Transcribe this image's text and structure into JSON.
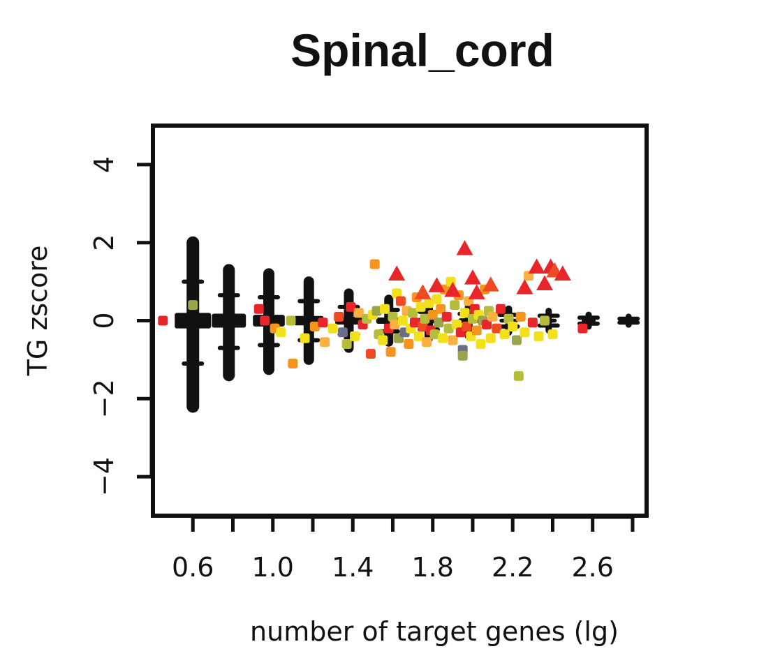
{
  "chart_data": {
    "type": "scatter",
    "title": "Spinal_cord",
    "xlabel": "number of target genes (lg)",
    "ylabel": "TG zscore",
    "xlim": [
      0.4,
      2.87
    ],
    "ylim": [
      -5,
      5
    ],
    "x_ticks": [
      0.6,
      0.8,
      1.0,
      1.2,
      1.4,
      1.6,
      1.8,
      2.0,
      2.2,
      2.4,
      2.6,
      2.8
    ],
    "x_tick_labels": [
      "0.6",
      "",
      "1.0",
      "",
      "1.4",
      "",
      "1.8",
      "",
      "2.2",
      "",
      "2.6",
      ""
    ],
    "y_ticks": [
      -4,
      -2,
      0,
      2,
      4
    ],
    "y_tick_labels": [
      "−4",
      "−2",
      "0",
      "2",
      "4"
    ],
    "grid": false,
    "legend": "none",
    "colors": {
      "black": "#111111",
      "red": "#e8262a",
      "orange_red": "#f04a23",
      "orange": "#f7941d",
      "amber": "#fbb040",
      "yellow": "#f2e11a",
      "olive": "#b5bd3a",
      "khaki": "#9aa44a",
      "slate": "#6d6d85",
      "navy": "#2e3a87"
    },
    "null_distribution": [
      {
        "x": 0.6,
        "y_min": -2.2,
        "y_max": 2.0,
        "box_half_height": 0.2
      },
      {
        "x": 0.78,
        "y_min": -1.4,
        "y_max": 1.3,
        "box_half_height": 0.18
      },
      {
        "x": 0.98,
        "y_min": -1.25,
        "y_max": 1.2,
        "box_half_height": 0.15
      },
      {
        "x": 1.18,
        "y_min": -1.0,
        "y_max": 1.0,
        "box_half_height": 0.12
      },
      {
        "x": 1.38,
        "y_min": -0.7,
        "y_max": 0.7,
        "box_half_height": 0.1
      },
      {
        "x": 1.58,
        "y_min": -0.55,
        "y_max": 0.55,
        "box_half_height": 0.08
      },
      {
        "x": 1.78,
        "y_min": -0.45,
        "y_max": 0.45,
        "box_half_height": 0.07
      },
      {
        "x": 1.98,
        "y_min": -0.4,
        "y_max": 0.35,
        "box_half_height": 0.06
      },
      {
        "x": 2.18,
        "y_min": -0.3,
        "y_max": 0.3,
        "box_half_height": 0.05
      },
      {
        "x": 2.38,
        "y_min": -0.25,
        "y_max": 0.25,
        "box_half_height": 0.05
      },
      {
        "x": 2.58,
        "y_min": -0.15,
        "y_max": 0.15,
        "box_half_height": 0.05
      },
      {
        "x": 2.78,
        "y_min": -0.1,
        "y_max": 0.1,
        "box_half_height": 0.05
      }
    ],
    "points": [
      {
        "x": 0.45,
        "y": 0.0,
        "color": "red",
        "shape": "square"
      },
      {
        "x": 0.6,
        "y": 0.4,
        "color": "khaki",
        "shape": "square"
      },
      {
        "x": 0.93,
        "y": 0.3,
        "color": "red",
        "shape": "square"
      },
      {
        "x": 0.96,
        "y": 0.0,
        "color": "red",
        "shape": "square"
      },
      {
        "x": 1.01,
        "y": -0.2,
        "color": "orange",
        "shape": "square"
      },
      {
        "x": 1.04,
        "y": -0.3,
        "color": "yellow",
        "shape": "square"
      },
      {
        "x": 1.09,
        "y": 0.0,
        "color": "olive",
        "shape": "square"
      },
      {
        "x": 1.1,
        "y": -1.1,
        "color": "orange",
        "shape": "square"
      },
      {
        "x": 1.16,
        "y": -0.45,
        "color": "yellow",
        "shape": "square"
      },
      {
        "x": 1.21,
        "y": -0.15,
        "color": "orange",
        "shape": "square"
      },
      {
        "x": 1.25,
        "y": -0.05,
        "color": "red",
        "shape": "square"
      },
      {
        "x": 1.26,
        "y": -0.55,
        "color": "amber",
        "shape": "square"
      },
      {
        "x": 1.3,
        "y": -0.2,
        "color": "yellow",
        "shape": "square"
      },
      {
        "x": 1.33,
        "y": 0.1,
        "color": "orange_red",
        "shape": "square"
      },
      {
        "x": 1.35,
        "y": -0.3,
        "color": "slate",
        "shape": "square"
      },
      {
        "x": 1.37,
        "y": -0.6,
        "color": "olive",
        "shape": "square"
      },
      {
        "x": 1.39,
        "y": 0.35,
        "color": "red",
        "shape": "square"
      },
      {
        "x": 1.41,
        "y": -0.4,
        "color": "yellow",
        "shape": "square"
      },
      {
        "x": 1.43,
        "y": 0.2,
        "color": "amber",
        "shape": "square"
      },
      {
        "x": 1.45,
        "y": -0.1,
        "color": "red",
        "shape": "square"
      },
      {
        "x": 1.47,
        "y": 0.05,
        "color": "olive",
        "shape": "square"
      },
      {
        "x": 1.49,
        "y": -0.85,
        "color": "orange_red",
        "shape": "square"
      },
      {
        "x": 1.5,
        "y": 0.15,
        "color": "yellow",
        "shape": "square"
      },
      {
        "x": 1.51,
        "y": 1.45,
        "color": "orange",
        "shape": "square"
      },
      {
        "x": 1.52,
        "y": 0.25,
        "color": "khaki",
        "shape": "square"
      },
      {
        "x": 1.53,
        "y": -0.35,
        "color": "olive",
        "shape": "square"
      },
      {
        "x": 1.55,
        "y": -0.5,
        "color": "yellow",
        "shape": "square"
      },
      {
        "x": 1.56,
        "y": 0.3,
        "color": "yellow",
        "shape": "square"
      },
      {
        "x": 1.58,
        "y": -0.2,
        "color": "red",
        "shape": "square"
      },
      {
        "x": 1.59,
        "y": -0.8,
        "color": "orange",
        "shape": "square"
      },
      {
        "x": 1.6,
        "y": 0.1,
        "color": "olive",
        "shape": "square"
      },
      {
        "x": 1.61,
        "y": -0.1,
        "color": "amber",
        "shape": "square"
      },
      {
        "x": 1.62,
        "y": 0.7,
        "color": "yellow",
        "shape": "square"
      },
      {
        "x": 1.63,
        "y": -0.45,
        "color": "khaki",
        "shape": "square"
      },
      {
        "x": 1.64,
        "y": 0.5,
        "color": "orange_red",
        "shape": "square"
      },
      {
        "x": 1.65,
        "y": 0.0,
        "color": "yellow",
        "shape": "square"
      },
      {
        "x": 1.66,
        "y": -0.3,
        "color": "slate",
        "shape": "square"
      },
      {
        "x": 1.67,
        "y": 0.25,
        "color": "amber",
        "shape": "square"
      },
      {
        "x": 1.68,
        "y": -0.6,
        "color": "orange",
        "shape": "square"
      },
      {
        "x": 1.69,
        "y": -0.2,
        "color": "yellow",
        "shape": "square"
      },
      {
        "x": 1.7,
        "y": 0.2,
        "color": "olive",
        "shape": "square"
      },
      {
        "x": 1.71,
        "y": -0.05,
        "color": "red",
        "shape": "square"
      },
      {
        "x": 1.72,
        "y": 0.6,
        "color": "orange",
        "shape": "square"
      },
      {
        "x": 1.73,
        "y": -0.4,
        "color": "yellow",
        "shape": "square"
      },
      {
        "x": 1.74,
        "y": 0.35,
        "color": "yellow",
        "shape": "square"
      },
      {
        "x": 1.75,
        "y": -0.15,
        "color": "orange_red",
        "shape": "square"
      },
      {
        "x": 1.76,
        "y": 0.05,
        "color": "olive",
        "shape": "square"
      },
      {
        "x": 1.77,
        "y": -0.55,
        "color": "amber",
        "shape": "square"
      },
      {
        "x": 1.78,
        "y": 0.45,
        "color": "yellow",
        "shape": "square"
      },
      {
        "x": 1.79,
        "y": -0.25,
        "color": "red",
        "shape": "square"
      },
      {
        "x": 1.8,
        "y": 0.15,
        "color": "orange",
        "shape": "square"
      },
      {
        "x": 1.81,
        "y": -0.35,
        "color": "olive",
        "shape": "square"
      },
      {
        "x": 1.82,
        "y": 0.55,
        "color": "yellow",
        "shape": "square"
      },
      {
        "x": 1.83,
        "y": -0.05,
        "color": "khaki",
        "shape": "square"
      },
      {
        "x": 1.84,
        "y": 0.3,
        "color": "orange",
        "shape": "square"
      },
      {
        "x": 1.85,
        "y": -0.45,
        "color": "yellow",
        "shape": "square"
      },
      {
        "x": 1.86,
        "y": 0.8,
        "color": "orange",
        "shape": "square"
      },
      {
        "x": 1.87,
        "y": 0.1,
        "color": "red",
        "shape": "square"
      },
      {
        "x": 1.88,
        "y": -0.2,
        "color": "olive",
        "shape": "square"
      },
      {
        "x": 1.89,
        "y": 1.0,
        "color": "yellow",
        "shape": "square"
      },
      {
        "x": 1.9,
        "y": -0.5,
        "color": "amber",
        "shape": "square"
      },
      {
        "x": 1.91,
        "y": 0.4,
        "color": "olive",
        "shape": "square"
      },
      {
        "x": 1.92,
        "y": -0.1,
        "color": "yellow",
        "shape": "square"
      },
      {
        "x": 1.93,
        "y": 0.65,
        "color": "orange",
        "shape": "square"
      },
      {
        "x": 1.94,
        "y": -0.3,
        "color": "red",
        "shape": "square"
      },
      {
        "x": 1.95,
        "y": -0.75,
        "color": "slate",
        "shape": "square"
      },
      {
        "x": 1.95,
        "y": -0.9,
        "color": "khaki",
        "shape": "square"
      },
      {
        "x": 1.96,
        "y": 0.2,
        "color": "yellow",
        "shape": "square"
      },
      {
        "x": 1.97,
        "y": -0.15,
        "color": "orange_red",
        "shape": "square"
      },
      {
        "x": 1.98,
        "y": 0.5,
        "color": "amber",
        "shape": "square"
      },
      {
        "x": 1.99,
        "y": -0.4,
        "color": "yellow",
        "shape": "square"
      },
      {
        "x": 2.0,
        "y": 0.05,
        "color": "olive",
        "shape": "square"
      },
      {
        "x": 2.01,
        "y": 0.3,
        "color": "red",
        "shape": "square"
      },
      {
        "x": 2.02,
        "y": -0.25,
        "color": "orange",
        "shape": "square"
      },
      {
        "x": 2.03,
        "y": 0.15,
        "color": "yellow",
        "shape": "square"
      },
      {
        "x": 2.04,
        "y": -0.6,
        "color": "yellow",
        "shape": "square"
      },
      {
        "x": 2.05,
        "y": 0.0,
        "color": "khaki",
        "shape": "square"
      },
      {
        "x": 2.06,
        "y": 0.8,
        "color": "orange",
        "shape": "square"
      },
      {
        "x": 2.07,
        "y": -0.1,
        "color": "red",
        "shape": "square"
      },
      {
        "x": 2.08,
        "y": 0.25,
        "color": "olive",
        "shape": "square"
      },
      {
        "x": 2.09,
        "y": -0.45,
        "color": "yellow",
        "shape": "square"
      },
      {
        "x": 2.1,
        "y": 0.1,
        "color": "amber",
        "shape": "square"
      },
      {
        "x": 2.12,
        "y": -0.2,
        "color": "orange_red",
        "shape": "square"
      },
      {
        "x": 2.14,
        "y": 0.3,
        "color": "red",
        "shape": "square"
      },
      {
        "x": 2.16,
        "y": -0.35,
        "color": "yellow",
        "shape": "square"
      },
      {
        "x": 2.18,
        "y": 0.05,
        "color": "olive",
        "shape": "square"
      },
      {
        "x": 2.2,
        "y": -0.15,
        "color": "yellow",
        "shape": "square"
      },
      {
        "x": 2.22,
        "y": -0.5,
        "color": "khaki",
        "shape": "square"
      },
      {
        "x": 2.23,
        "y": -1.42,
        "color": "olive",
        "shape": "square"
      },
      {
        "x": 2.24,
        "y": 0.1,
        "color": "orange",
        "shape": "square"
      },
      {
        "x": 2.26,
        "y": -0.3,
        "color": "yellow",
        "shape": "square"
      },
      {
        "x": 2.28,
        "y": 1.15,
        "color": "amber",
        "shape": "square"
      },
      {
        "x": 2.3,
        "y": -0.05,
        "color": "red",
        "shape": "square"
      },
      {
        "x": 2.33,
        "y": -0.4,
        "color": "yellow",
        "shape": "square"
      },
      {
        "x": 2.36,
        "y": 0.0,
        "color": "olive",
        "shape": "square"
      },
      {
        "x": 2.4,
        "y": -0.35,
        "color": "yellow",
        "shape": "square"
      },
      {
        "x": 2.55,
        "y": -0.2,
        "color": "red",
        "shape": "square"
      },
      {
        "x": 1.62,
        "y": 1.2,
        "color": "red",
        "shape": "triangle"
      },
      {
        "x": 1.75,
        "y": 0.72,
        "color": "orange_red",
        "shape": "triangle"
      },
      {
        "x": 1.82,
        "y": 0.9,
        "color": "red",
        "shape": "triangle"
      },
      {
        "x": 1.9,
        "y": 0.78,
        "color": "red",
        "shape": "triangle"
      },
      {
        "x": 1.96,
        "y": 1.85,
        "color": "red",
        "shape": "triangle"
      },
      {
        "x": 2.0,
        "y": 1.1,
        "color": "red",
        "shape": "triangle"
      },
      {
        "x": 2.02,
        "y": 0.72,
        "color": "red",
        "shape": "triangle"
      },
      {
        "x": 2.09,
        "y": 0.92,
        "color": "orange_red",
        "shape": "triangle"
      },
      {
        "x": 2.26,
        "y": 0.85,
        "color": "red",
        "shape": "triangle"
      },
      {
        "x": 2.32,
        "y": 1.38,
        "color": "red",
        "shape": "triangle"
      },
      {
        "x": 2.36,
        "y": 0.95,
        "color": "red",
        "shape": "triangle"
      },
      {
        "x": 2.39,
        "y": 1.38,
        "color": "red",
        "shape": "triangle"
      },
      {
        "x": 2.41,
        "y": 1.28,
        "color": "orange_red",
        "shape": "triangle"
      },
      {
        "x": 2.45,
        "y": 1.2,
        "color": "red",
        "shape": "triangle"
      }
    ]
  }
}
